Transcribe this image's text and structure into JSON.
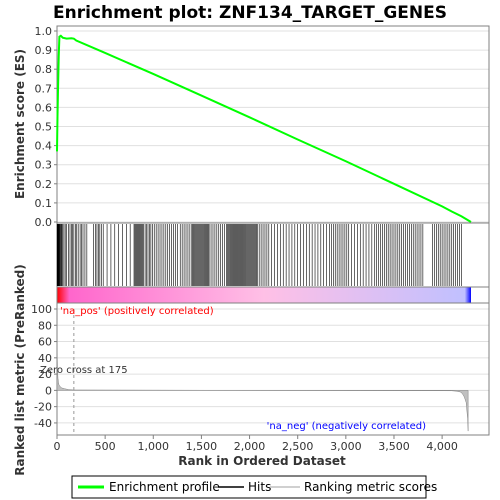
{
  "chart_data": {
    "type": "line",
    "title": "Enrichment plot: ZNF134_TARGET_GENES",
    "top_panel": {
      "ylabel": "Enrichment score (ES)",
      "ylim": [
        0.0,
        1.0
      ],
      "yticks": [
        "0.0",
        "0.1",
        "0.2",
        "0.3",
        "0.4",
        "0.5",
        "0.6",
        "0.7",
        "0.8",
        "0.9",
        "1.0"
      ],
      "grid": true,
      "series": [
        {
          "name": "Enrichment profile",
          "color": "#00ff00",
          "x": [
            0,
            5,
            10,
            18,
            25,
            40,
            60,
            100,
            150,
            175,
            200,
            500,
            1000,
            1500,
            2000,
            2500,
            3000,
            3500,
            4000,
            4100,
            4200,
            4300
          ],
          "y": [
            0.37,
            0.55,
            0.68,
            0.87,
            0.97,
            0.975,
            0.965,
            0.96,
            0.962,
            0.96,
            0.95,
            0.885,
            0.775,
            0.662,
            0.548,
            0.432,
            0.318,
            0.2,
            0.082,
            0.055,
            0.03,
            0.0
          ]
        }
      ]
    },
    "hits_panel": {
      "hit_color": "#000000",
      "hits": [
        2,
        5,
        8,
        11,
        14,
        18,
        22,
        28,
        35,
        42,
        50,
        60,
        72,
        85,
        100,
        118,
        135,
        150,
        160,
        175,
        190,
        205,
        220,
        240,
        255,
        270,
        290,
        310,
        380,
        400,
        415,
        430,
        445,
        460,
        480,
        520,
        560,
        600,
        640,
        680,
        720,
        760,
        800,
        810,
        820,
        830,
        840,
        850,
        860,
        870,
        880,
        890,
        900,
        915,
        930,
        945,
        960,
        975,
        990,
        1010,
        1030,
        1050,
        1070,
        1090,
        1110,
        1130,
        1150,
        1170,
        1190,
        1210,
        1230,
        1250,
        1280,
        1300,
        1320,
        1340,
        1360,
        1380,
        1400,
        1410,
        1420,
        1430,
        1440,
        1450,
        1460,
        1470,
        1480,
        1490,
        1500,
        1510,
        1520,
        1530,
        1540,
        1550,
        1560,
        1570,
        1580,
        1600,
        1620,
        1640,
        1660,
        1680,
        1700,
        1720,
        1740,
        1760,
        1770,
        1780,
        1790,
        1800,
        1810,
        1820,
        1830,
        1840,
        1850,
        1860,
        1870,
        1880,
        1890,
        1900,
        1910,
        1920,
        1930,
        1940,
        1950,
        1960,
        1970,
        1980,
        1990,
        2000,
        2010,
        2020,
        2030,
        2040,
        2050,
        2060,
        2070,
        2080,
        2100,
        2120,
        2140,
        2160,
        2180,
        2200,
        2230,
        2260,
        2290,
        2320,
        2350,
        2380,
        2410,
        2440,
        2470,
        2500,
        2530,
        2560,
        2590,
        2620,
        2650,
        2680,
        2710,
        2740,
        2770,
        2800,
        2830,
        2850,
        2870,
        2890,
        2910,
        2930,
        2950,
        2970,
        2990,
        3010,
        3030,
        3060,
        3090,
        3120,
        3150,
        3180,
        3210,
        3240,
        3270,
        3300,
        3320,
        3340,
        3360,
        3380,
        3400,
        3420,
        3440,
        3460,
        3480,
        3500,
        3520,
        3540,
        3560,
        3580,
        3600,
        3620,
        3640,
        3660,
        3680,
        3700,
        3720,
        3740,
        3760,
        3780,
        3800,
        3900,
        3920,
        3940,
        3960,
        3980,
        4000,
        4020,
        4040,
        4060,
        4080,
        4100,
        4120,
        4140,
        4160,
        4180,
        4200
      ]
    },
    "bar_panel": {
      "gradient": [
        "#ff0000",
        "#ff66cc",
        "#ffc0e6",
        "#c0c0ff",
        "#0000ff"
      ]
    },
    "bottom_panel": {
      "ylabel": "Ranked list metric (PreRanked)",
      "ylim": [
        -50,
        100
      ],
      "yticks": [
        "100",
        "80",
        "60",
        "40",
        "20",
        "0",
        "-20",
        "-40"
      ],
      "grid": true,
      "area_color": "#c0c0c0",
      "x": [
        0,
        3,
        6,
        10,
        15,
        20,
        30,
        50,
        80,
        120,
        175,
        4100,
        4150,
        4190,
        4210,
        4230,
        4250,
        4265,
        4270
      ],
      "y": [
        100,
        40,
        25,
        15,
        10,
        7,
        5,
        3,
        2,
        1,
        0.5,
        -0.5,
        -1,
        -2,
        -4,
        -8,
        -15,
        -35,
        -50
      ],
      "annotations": {
        "pos": "'na_pos' (positively correlated)",
        "neg": "'na_neg' (negatively correlated)",
        "cross": "Zero cross at 175",
        "cross_x": 175
      }
    },
    "xaxis": {
      "xlabel": "Rank in Ordered Dataset",
      "xlim": [
        0,
        4300
      ],
      "xticks": [
        "0",
        "500",
        "1,000",
        "1,500",
        "2,000",
        "2,500",
        "3,000",
        "3,500",
        "4,000"
      ],
      "xtick_values": [
        0,
        500,
        1000,
        1500,
        2000,
        2500,
        3000,
        3500,
        4000
      ]
    },
    "legend": {
      "placement": "bottom",
      "items": [
        {
          "label": "Enrichment profile",
          "color": "#00ff00"
        },
        {
          "label": "Hits",
          "color": "#000000"
        },
        {
          "label": "Ranking metric scores",
          "color": "#c0c0c0"
        }
      ]
    }
  }
}
